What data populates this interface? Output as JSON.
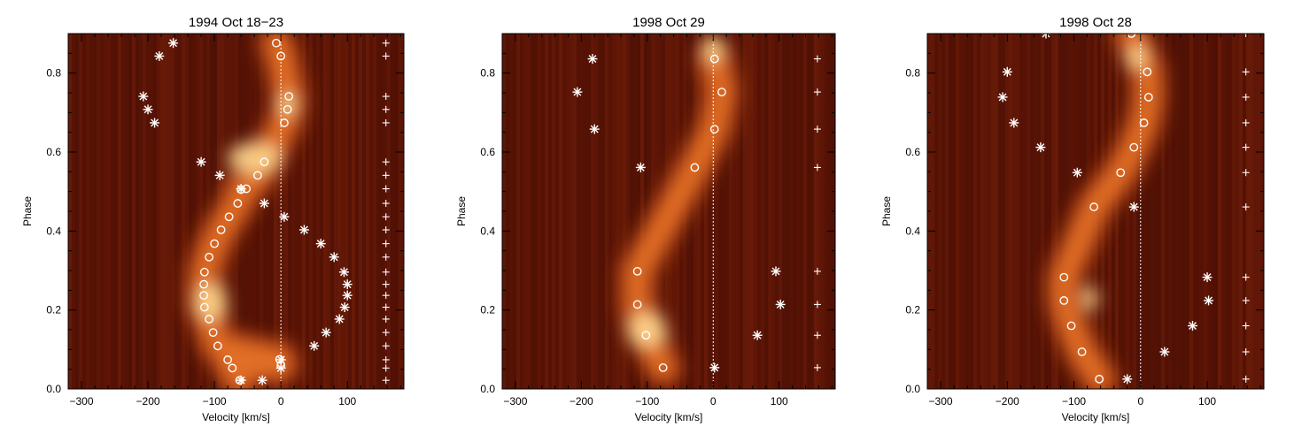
{
  "chart_data": [
    {
      "type": "scatter",
      "title": "1994 Oct 18−23",
      "xlabel": "Velocity [km/s]",
      "ylabel": "Phase",
      "xlim": [
        -320,
        185
      ],
      "ylim": [
        0.0,
        0.9
      ],
      "xticks": [
        -300,
        -200,
        -100,
        0,
        100
      ],
      "yticks": [
        0.0,
        0.2,
        0.4,
        0.6,
        0.8
      ],
      "background": "dynamic spectrum heatmap (dark red to yellow-white)",
      "zero_line": 0,
      "series": [
        {
          "marker": "circle",
          "points": [
            [
              -7,
              0.876
            ],
            [
              0,
              0.843
            ],
            [
              12,
              0.741
            ],
            [
              10,
              0.708
            ],
            [
              5,
              0.674
            ],
            [
              -25,
              0.575
            ],
            [
              -35,
              0.541
            ],
            [
              -52,
              0.507
            ],
            [
              -60,
              0.505
            ],
            [
              -65,
              0.47
            ],
            [
              -78,
              0.436
            ],
            [
              -90,
              0.403
            ],
            [
              -100,
              0.368
            ],
            [
              -108,
              0.334
            ],
            [
              -115,
              0.296
            ],
            [
              -116,
              0.265
            ],
            [
              -116,
              0.237
            ],
            [
              -115,
              0.207
            ],
            [
              -108,
              0.177
            ],
            [
              -102,
              0.143
            ],
            [
              -95,
              0.109
            ],
            [
              -80,
              0.074
            ],
            [
              -73,
              0.053
            ],
            [
              -62,
              0.022
            ],
            [
              0,
              0.06
            ],
            [
              -2,
              0.075
            ]
          ]
        },
        {
          "marker": "asterisk",
          "points": [
            [
              -162,
              0.876
            ],
            [
              -183,
              0.843
            ],
            [
              -207,
              0.741
            ],
            [
              -200,
              0.708
            ],
            [
              -190,
              0.674
            ],
            [
              -120,
              0.575
            ],
            [
              -92,
              0.541
            ],
            [
              -60,
              0.507
            ],
            [
              -25,
              0.47
            ],
            [
              5,
              0.436
            ],
            [
              35,
              0.403
            ],
            [
              60,
              0.368
            ],
            [
              80,
              0.334
            ],
            [
              95,
              0.296
            ],
            [
              100,
              0.265
            ],
            [
              100,
              0.237
            ],
            [
              96,
              0.207
            ],
            [
              88,
              0.177
            ],
            [
              68,
              0.143
            ],
            [
              50,
              0.109
            ],
            [
              0,
              0.074
            ],
            [
              0,
              0.053
            ],
            [
              -60,
              0.022
            ],
            [
              -28,
              0.022
            ]
          ]
        },
        {
          "marker": "plus",
          "points": [
            [
              158,
              0.876
            ],
            [
              158,
              0.843
            ],
            [
              158,
              0.741
            ],
            [
              158,
              0.708
            ],
            [
              158,
              0.674
            ],
            [
              158,
              0.575
            ],
            [
              158,
              0.541
            ],
            [
              158,
              0.507
            ],
            [
              158,
              0.47
            ],
            [
              158,
              0.436
            ],
            [
              158,
              0.403
            ],
            [
              158,
              0.368
            ],
            [
              158,
              0.334
            ],
            [
              158,
              0.296
            ],
            [
              158,
              0.265
            ],
            [
              158,
              0.237
            ],
            [
              158,
              0.207
            ],
            [
              158,
              0.177
            ],
            [
              158,
              0.143
            ],
            [
              158,
              0.109
            ],
            [
              158,
              0.074
            ],
            [
              158,
              0.053
            ],
            [
              158,
              0.022
            ]
          ]
        }
      ]
    },
    {
      "type": "scatter",
      "title": "1998 Oct 29",
      "xlabel": "Velocity [km/s]",
      "ylabel": "Phase",
      "xlim": [
        -320,
        185
      ],
      "ylim": [
        0.0,
        0.9
      ],
      "xticks": [
        -300,
        -200,
        -100,
        0,
        100
      ],
      "yticks": [
        0.0,
        0.2,
        0.4,
        0.6,
        0.8
      ],
      "background": "dynamic spectrum heatmap (dark red to yellow-white)",
      "zero_line": 0,
      "series": [
        {
          "marker": "circle",
          "points": [
            [
              2,
              0.836
            ],
            [
              13,
              0.752
            ],
            [
              2,
              0.658
            ],
            [
              -28,
              0.561
            ],
            [
              -115,
              0.298
            ],
            [
              -115,
              0.214
            ],
            [
              -102,
              0.136
            ],
            [
              -76,
              0.054
            ]
          ]
        },
        {
          "marker": "asterisk",
          "points": [
            [
              -183,
              0.836
            ],
            [
              -206,
              0.752
            ],
            [
              -180,
              0.658
            ],
            [
              -110,
              0.561
            ],
            [
              95,
              0.298
            ],
            [
              102,
              0.214
            ],
            [
              67,
              0.136
            ],
            [
              2,
              0.054
            ]
          ]
        },
        {
          "marker": "plus",
          "points": [
            [
              158,
              0.836
            ],
            [
              158,
              0.752
            ],
            [
              158,
              0.658
            ],
            [
              158,
              0.561
            ],
            [
              158,
              0.298
            ],
            [
              158,
              0.214
            ],
            [
              158,
              0.136
            ],
            [
              158,
              0.054
            ]
          ]
        }
      ]
    },
    {
      "type": "scatter",
      "title": "1998 Oct 28",
      "xlabel": "Velocity [km/s]",
      "ylabel": "Phase",
      "xlim": [
        -320,
        185
      ],
      "ylim": [
        0.0,
        0.9
      ],
      "xticks": [
        -300,
        -200,
        -100,
        0,
        100
      ],
      "yticks": [
        0.0,
        0.2,
        0.4,
        0.6,
        0.8
      ],
      "background": "dynamic spectrum heatmap (dark red to yellow-white)",
      "zero_line": 0,
      "series": [
        {
          "marker": "circle",
          "points": [
            [
              -14,
              0.9
            ],
            [
              10,
              0.803
            ],
            [
              12,
              0.739
            ],
            [
              5,
              0.674
            ],
            [
              -10,
              0.612
            ],
            [
              -30,
              0.548
            ],
            [
              -70,
              0.461
            ],
            [
              -115,
              0.283
            ],
            [
              -115,
              0.224
            ],
            [
              -104,
              0.16
            ],
            [
              -88,
              0.094
            ],
            [
              -62,
              0.025
            ]
          ]
        },
        {
          "marker": "asterisk",
          "points": [
            [
              -142,
              0.9
            ],
            [
              -200,
              0.803
            ],
            [
              -207,
              0.739
            ],
            [
              -190,
              0.674
            ],
            [
              -150,
              0.612
            ],
            [
              -95,
              0.548
            ],
            [
              -10,
              0.461
            ],
            [
              100,
              0.283
            ],
            [
              102,
              0.224
            ],
            [
              78,
              0.16
            ],
            [
              36,
              0.094
            ],
            [
              -20,
              0.025
            ]
          ]
        },
        {
          "marker": "plus",
          "points": [
            [
              158,
              0.9
            ],
            [
              158,
              0.803
            ],
            [
              158,
              0.739
            ],
            [
              158,
              0.674
            ],
            [
              158,
              0.612
            ],
            [
              158,
              0.548
            ],
            [
              158,
              0.461
            ],
            [
              158,
              0.283
            ],
            [
              158,
              0.224
            ],
            [
              158,
              0.16
            ],
            [
              158,
              0.094
            ],
            [
              158,
              0.025
            ]
          ]
        }
      ]
    }
  ]
}
